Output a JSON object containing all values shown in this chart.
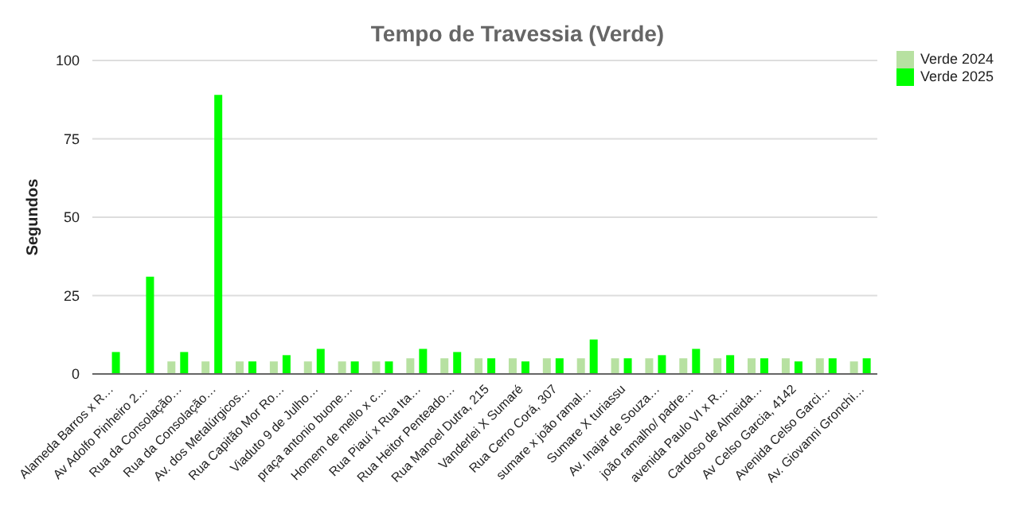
{
  "chart_data": {
    "type": "bar",
    "title": "Tempo de Travessia (Verde)",
    "ylabel": "Segundos",
    "categories": [
      "Alameda Barros x R…",
      "Av Adolfo Pinheiro 2…",
      "Rua da Consolação…",
      "Rua da Consolação…",
      "Av. dos Metalúrgicos…",
      "Rua Capitão Mor Ro…",
      "Viaduto 9 de Julho…",
      "praça antonio buone…",
      "Homem de mello x c…",
      "Rua Piauí x Rua Ita…",
      "Rua Heitor Penteado…",
      "Rua Manoel Dutra, 215",
      "Vanderlei X Sumaré",
      "Rua Cerro Corá, 307",
      "sumare x joão ramal…",
      "Sumare X turiassu",
      "Av. Inajar de Souza…",
      "joão ramalho/ padre…",
      "avenida Paulo VI x R…",
      "Cardoso de Almeida…",
      "Av Celso Garcia, 4142",
      "Avenida Celso Garci…",
      "Av. Giovanni Gronchi…"
    ],
    "series": [
      {
        "name": "Verde 2024",
        "color": "#b7e1a1",
        "values": [
          null,
          null,
          4,
          4,
          4,
          4,
          4,
          4,
          4,
          5,
          5,
          5,
          5,
          5,
          5,
          5,
          5,
          5,
          5,
          5,
          5,
          5,
          4
        ]
      },
      {
        "name": "Verde 2025",
        "color": "#00ff00",
        "values": [
          7,
          31,
          7,
          89,
          4,
          6,
          8,
          4,
          4,
          8,
          7,
          5,
          4,
          5,
          11,
          5,
          6,
          8,
          6,
          5,
          4,
          5,
          5
        ]
      }
    ],
    "ylim": [
      0,
      100
    ],
    "yticks": [
      0,
      25,
      50,
      75,
      100
    ],
    "grid": "y",
    "legend": "top right"
  }
}
